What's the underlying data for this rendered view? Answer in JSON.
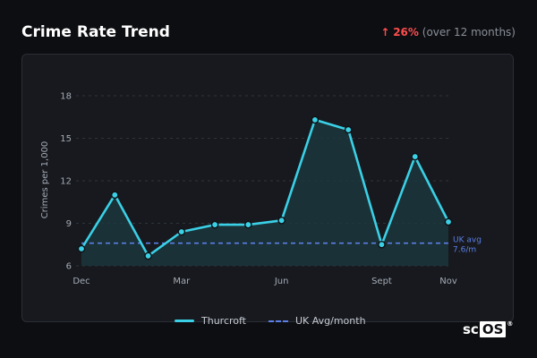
{
  "header": {
    "title": "Crime Rate Trend",
    "trend_arrow": "↑",
    "trend_value": "26%",
    "trend_period": "(over 12 months)"
  },
  "legend": {
    "series_label": "Thurcroft",
    "avg_label": "UK Avg/month"
  },
  "logo": {
    "prefix": "sc",
    "boxed": "OS",
    "mark": "®"
  },
  "colors": {
    "line": "#3ad0e6",
    "fill": "#1c3a40",
    "avg": "#5b7fe6",
    "trend_up": "#ff4d4d",
    "background": "#0d0e12",
    "card": "#17191e"
  },
  "chart_data": {
    "type": "line",
    "title": "",
    "xlabel": "",
    "ylabel": "Crimes per 1,000",
    "ylim": [
      6,
      18
    ],
    "yticks": [
      6,
      9,
      12,
      15,
      18
    ],
    "x_tick_labels": [
      "Dec",
      "Mar",
      "Jun",
      "Sept",
      "Nov"
    ],
    "x_tick_indices": [
      0,
      3,
      6,
      9,
      11
    ],
    "grid": "horizontal dashed",
    "series": [
      {
        "name": "Thurcroft",
        "values": [
          7.2,
          11.0,
          6.7,
          8.4,
          8.9,
          8.9,
          9.2,
          16.3,
          15.6,
          7.5,
          13.7,
          9.1
        ]
      }
    ],
    "reference_line": {
      "name": "UK Avg/month",
      "value": 7.6,
      "label_line1": "UK avg",
      "label_line2": "7.6/m"
    }
  }
}
